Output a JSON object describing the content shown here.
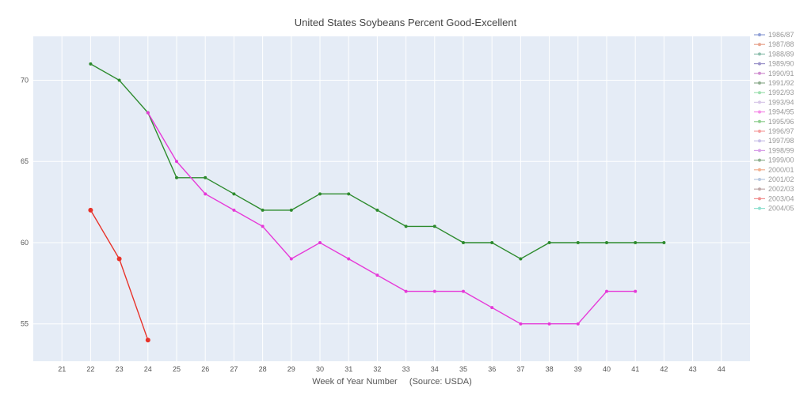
{
  "chart_data": {
    "type": "line",
    "title": "United States Soybeans Percent Good-Excellent",
    "xlabel": "Week of Year Number     (Source: USDA)",
    "ylabel": "",
    "xlim": [
      20,
      45
    ],
    "ylim": [
      52.7,
      72.7
    ],
    "x_ticks": [
      21,
      22,
      23,
      24,
      25,
      26,
      27,
      28,
      29,
      30,
      31,
      32,
      33,
      34,
      35,
      36,
      37,
      38,
      39,
      40,
      41,
      42,
      43,
      44
    ],
    "y_ticks": [
      55,
      60,
      65,
      70
    ],
    "grid": true,
    "legend_position": "right",
    "legend": [
      {
        "name": "1986/87",
        "color": "#8f9fd6"
      },
      {
        "name": "1987/88",
        "color": "#e8a58f"
      },
      {
        "name": "1988/89",
        "color": "#8fbfae"
      },
      {
        "name": "1989/90",
        "color": "#9b93c9"
      },
      {
        "name": "1990/91",
        "color": "#d08fd0"
      },
      {
        "name": "1991/92",
        "color": "#8fae8f"
      },
      {
        "name": "1992/93",
        "color": "#9fe0b0"
      },
      {
        "name": "1993/94",
        "color": "#d8c8e8"
      },
      {
        "name": "1994/95",
        "color": "#f58fe8"
      },
      {
        "name": "1995/96",
        "color": "#8fcf8f"
      },
      {
        "name": "1996/97",
        "color": "#f5a0a0"
      },
      {
        "name": "1997/98",
        "color": "#c8c0e8"
      },
      {
        "name": "1998/99",
        "color": "#d8a0e8"
      },
      {
        "name": "1999/00",
        "color": "#8fb08f"
      },
      {
        "name": "2000/01",
        "color": "#f0b090"
      },
      {
        "name": "2001/02",
        "color": "#b8c8e0"
      },
      {
        "name": "2002/03",
        "color": "#c0a8a8"
      },
      {
        "name": "2003/04",
        "color": "#f09090"
      },
      {
        "name": "2004/05",
        "color": "#90e0d0"
      }
    ],
    "series": [
      {
        "color": "#2e8b2e",
        "x": [
          22,
          23,
          24,
          25,
          26,
          27,
          28,
          29,
          30,
          31,
          32,
          33,
          34,
          35,
          36,
          37,
          38,
          39,
          40,
          41,
          42
        ],
        "values": [
          71,
          70,
          68,
          64,
          64,
          63,
          62,
          62,
          63,
          63,
          62,
          61,
          61,
          60,
          60,
          59,
          60,
          60,
          60,
          60,
          60
        ]
      },
      {
        "color": "#e63ad8",
        "x": [
          24,
          25,
          26,
          27,
          28,
          29,
          30,
          31,
          32,
          33,
          34,
          35,
          36,
          37,
          38,
          39,
          40,
          41
        ],
        "values": [
          68,
          65,
          63,
          62,
          61,
          59,
          60,
          59,
          58,
          57,
          57,
          57,
          56,
          55,
          55,
          55,
          57,
          57
        ]
      },
      {
        "color": "#e8332a",
        "x": [
          22,
          23,
          24
        ],
        "values": [
          62,
          59,
          54
        ]
      }
    ]
  }
}
